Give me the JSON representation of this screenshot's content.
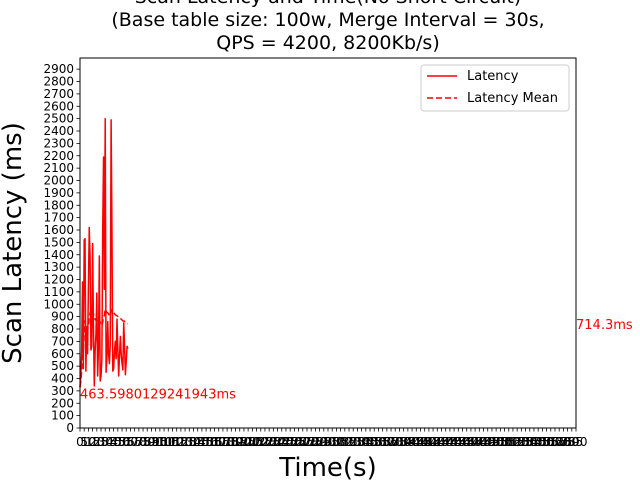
{
  "chart_data": {
    "type": "line",
    "title_lines": [
      "Scan Latency and Time(No Short Circuit)",
      "(Base table size: 100w, Merge Interval = 30s,",
      "QPS = 4200, 8200Kb/s)"
    ],
    "xlabel": "Time(s)",
    "ylabel": "Scan Latency (ms)",
    "xlim": [
      0,
      590
    ],
    "ylim": [
      0,
      2990
    ],
    "yticks": [
      0,
      100,
      200,
      300,
      400,
      500,
      600,
      700,
      800,
      900,
      1000,
      1100,
      1200,
      1300,
      1400,
      1500,
      1600,
      1700,
      1800,
      1900,
      2000,
      2100,
      2200,
      2300,
      2400,
      2500,
      2600,
      2700,
      2800,
      2900
    ],
    "xtick_step": 5,
    "grid": false,
    "legend": {
      "placement": "top-right",
      "entries": [
        {
          "label": "Latency",
          "style": "solid"
        },
        {
          "label": "Latency Mean",
          "style": "dashed"
        }
      ]
    },
    "series": [
      {
        "name": "Latency",
        "color": "#ff0000",
        "style": "solid",
        "x": [
          0,
          1,
          2,
          3,
          4,
          5,
          6,
          7,
          8,
          9,
          10,
          11,
          12,
          13,
          14,
          15,
          16,
          17,
          18,
          19,
          20,
          21,
          22,
          23,
          24,
          25,
          26,
          27,
          28,
          29,
          30,
          31,
          32,
          33,
          34,
          35,
          36,
          37,
          38,
          39,
          40,
          41,
          42,
          43,
          44,
          45,
          46,
          47,
          48,
          49,
          50,
          51,
          52,
          53,
          54,
          55,
          56,
          57
        ],
        "y": [
          330,
          420,
          620,
          1180,
          480,
          1520,
          1530,
          460,
          820,
          600,
          1150,
          1620,
          1380,
          630,
          660,
          1490,
          830,
          340,
          620,
          760,
          1090,
          420,
          640,
          1390,
          380,
          420,
          550,
          1590,
          2190,
          1120,
          2500,
          450,
          560,
          860,
          600,
          520,
          680,
          2490,
          1600,
          460,
          480,
          620,
          700,
          560,
          880,
          640,
          420,
          580,
          740,
          600,
          520,
          470,
          850,
          660,
          430,
          540,
          660,
          640
        ]
      },
      {
        "name": "Latency Mean",
        "color": "#ff0000",
        "style": "dashed",
        "x": [
          0,
          1,
          2,
          3,
          4,
          5,
          6,
          7,
          8,
          9,
          10,
          11,
          12,
          13,
          14,
          15,
          16,
          17,
          18,
          19,
          20,
          21,
          22,
          23,
          24,
          25,
          26,
          27,
          28,
          29,
          30,
          31,
          32,
          33,
          34,
          35,
          36,
          37,
          38,
          39,
          40,
          41,
          42,
          43,
          44,
          45,
          46,
          47,
          48,
          49,
          50,
          51,
          52,
          53,
          54,
          55,
          56,
          57
        ],
        "y": [
          330,
          375,
          457,
          637,
          605,
          757,
          867,
          816,
          817,
          795,
          827,
          893,
          930,
          909,
          892,
          929,
          923,
          891,
          877,
          871,
          881,
          861,
          852,
          875,
          855,
          838,
          827,
          855,
          901,
          908,
          960,
          944,
          932,
          931,
          921,
          910,
          904,
          945,
          957,
          943,
          931,
          923,
          917,
          909,
          908,
          902,
          892,
          887,
          885,
          880,
          873,
          866,
          865,
          862,
          855,
          849,
          845,
          841
        ]
      }
    ],
    "annotations": [
      {
        "text": "463.5980129241943ms",
        "x": 0,
        "y": 240,
        "color": "#ff0000",
        "anchor": "start"
      },
      {
        "text": "714.3ms",
        "x": 590,
        "y": 800,
        "color": "#ff0000",
        "anchor": "start"
      }
    ]
  }
}
